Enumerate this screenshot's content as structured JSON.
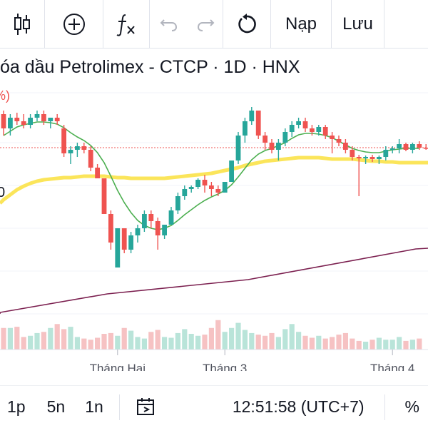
{
  "toolbar": {
    "items": [
      {
        "name": "candles-icon"
      },
      {
        "name": "add-indicator-icon"
      },
      {
        "name": "fx-icon"
      },
      {
        "name": "undo-icon"
      },
      {
        "name": "redo-icon"
      },
      {
        "name": "reload-icon"
      }
    ],
    "load_label": "Nạp",
    "save_label": "Lưu"
  },
  "chart": {
    "title": "óa dầu Petrolimex - CTCP · 1D · HNX",
    "left_cut_label": "%)",
    "left_price_label": "0"
  },
  "chart_data": {
    "type": "candlestick",
    "x_tick_labels": [
      "Tháng Hai",
      "Tháng 3",
      "Tháng 4"
    ],
    "colors": {
      "up": "#26a69a",
      "down": "#ef5350",
      "ma_fast": "#4caf50",
      "ma_mid": "#fbe55a",
      "ma_slow": "#7b1f4f",
      "vol_up": "#b9e4d9",
      "vol_down": "#f6c2c3"
    },
    "candles": [
      {
        "o": 62,
        "h": 62.5,
        "l": 59,
        "c": 60
      },
      {
        "o": 60,
        "h": 62,
        "l": 59,
        "c": 61.5
      },
      {
        "o": 61.5,
        "h": 62.2,
        "l": 60.5,
        "c": 61
      },
      {
        "o": 61,
        "h": 62,
        "l": 60,
        "c": 60.5
      },
      {
        "o": 60.5,
        "h": 62,
        "l": 60,
        "c": 61.5
      },
      {
        "o": 61.5,
        "h": 62.5,
        "l": 61,
        "c": 62
      },
      {
        "o": 62,
        "h": 62.5,
        "l": 60.5,
        "c": 61
      },
      {
        "o": 61,
        "h": 61.5,
        "l": 60,
        "c": 61.5
      },
      {
        "o": 61.5,
        "h": 62,
        "l": 60.5,
        "c": 61
      },
      {
        "o": 60,
        "h": 60.5,
        "l": 56,
        "c": 56.5
      },
      {
        "o": 56.5,
        "h": 57.5,
        "l": 55,
        "c": 57
      },
      {
        "o": 57,
        "h": 58,
        "l": 56,
        "c": 57.5
      },
      {
        "o": 57.5,
        "h": 58,
        "l": 56.5,
        "c": 57
      },
      {
        "o": 57,
        "h": 57.5,
        "l": 54,
        "c": 54.5
      },
      {
        "o": 54.5,
        "h": 55,
        "l": 53,
        "c": 53
      },
      {
        "o": 53,
        "h": 53,
        "l": 48,
        "c": 48
      },
      {
        "o": 48,
        "h": 48.5,
        "l": 43,
        "c": 44
      },
      {
        "o": 40.5,
        "h": 46,
        "l": 40.5,
        "c": 46
      },
      {
        "o": 46,
        "h": 46,
        "l": 42.5,
        "c": 43
      },
      {
        "o": 43,
        "h": 45.5,
        "l": 42.5,
        "c": 45
      },
      {
        "o": 45,
        "h": 46.5,
        "l": 44,
        "c": 46
      },
      {
        "o": 46,
        "h": 48.5,
        "l": 45.5,
        "c": 48
      },
      {
        "o": 48,
        "h": 48.5,
        "l": 46,
        "c": 47
      },
      {
        "o": 47,
        "h": 47.5,
        "l": 43,
        "c": 45
      },
      {
        "o": 45,
        "h": 46.5,
        "l": 44.5,
        "c": 46.5
      },
      {
        "o": 46.5,
        "h": 49,
        "l": 46.5,
        "c": 48.5
      },
      {
        "o": 48.5,
        "h": 51,
        "l": 48,
        "c": 50.5
      },
      {
        "o": 50.5,
        "h": 52,
        "l": 50,
        "c": 51.5
      },
      {
        "o": 51.5,
        "h": 52,
        "l": 51,
        "c": 51.8
      },
      {
        "o": 51.8,
        "h": 53,
        "l": 51.5,
        "c": 52.8
      },
      {
        "o": 52.8,
        "h": 53.5,
        "l": 51,
        "c": 52
      },
      {
        "o": 52,
        "h": 52.5,
        "l": 50.5,
        "c": 51.5
      },
      {
        "o": 51.5,
        "h": 52,
        "l": 50.5,
        "c": 51
      },
      {
        "o": 51,
        "h": 52.5,
        "l": 51,
        "c": 52.5
      },
      {
        "o": 52.5,
        "h": 55.5,
        "l": 52.5,
        "c": 55.5
      },
      {
        "o": 55.5,
        "h": 59.5,
        "l": 55,
        "c": 59
      },
      {
        "o": 59,
        "h": 61.5,
        "l": 58,
        "c": 61
      },
      {
        "o": 61,
        "h": 63,
        "l": 60.5,
        "c": 62.5
      },
      {
        "o": 62.5,
        "h": 62.5,
        "l": 58.5,
        "c": 59
      },
      {
        "o": 59,
        "h": 59.5,
        "l": 57,
        "c": 58
      },
      {
        "o": 58,
        "h": 58.5,
        "l": 56.5,
        "c": 57
      },
      {
        "o": 57,
        "h": 58.5,
        "l": 55.5,
        "c": 58
      },
      {
        "o": 58,
        "h": 60,
        "l": 57.5,
        "c": 59.5
      },
      {
        "o": 59.5,
        "h": 61,
        "l": 58.8,
        "c": 60.5
      },
      {
        "o": 60.5,
        "h": 61.5,
        "l": 60,
        "c": 61
      },
      {
        "o": 61,
        "h": 61.5,
        "l": 59.5,
        "c": 60
      },
      {
        "o": 60,
        "h": 60.5,
        "l": 59,
        "c": 59.5
      },
      {
        "o": 59.5,
        "h": 60.5,
        "l": 59,
        "c": 60.2
      },
      {
        "o": 60.2,
        "h": 60.5,
        "l": 58.5,
        "c": 59
      },
      {
        "o": 59,
        "h": 59.5,
        "l": 56.5,
        "c": 58.5
      },
      {
        "o": 58.5,
        "h": 59,
        "l": 57.5,
        "c": 58
      },
      {
        "o": 58,
        "h": 58.5,
        "l": 56.5,
        "c": 57
      },
      {
        "o": 57,
        "h": 57.5,
        "l": 55.5,
        "c": 56
      },
      {
        "o": 56,
        "h": 56.3,
        "l": 50.5,
        "c": 55.8
      },
      {
        "o": 55.8,
        "h": 56.2,
        "l": 55,
        "c": 56
      },
      {
        "o": 56,
        "h": 56.3,
        "l": 55.3,
        "c": 55.7
      },
      {
        "o": 55.7,
        "h": 56.2,
        "l": 55,
        "c": 56
      },
      {
        "o": 56,
        "h": 57.5,
        "l": 55.5,
        "c": 57
      },
      {
        "o": 57,
        "h": 57.5,
        "l": 56.5,
        "c": 57.2
      },
      {
        "o": 57.2,
        "h": 58.5,
        "l": 56.5,
        "c": 57.8
      },
      {
        "o": 57.8,
        "h": 58,
        "l": 56.8,
        "c": 57
      },
      {
        "o": 57,
        "h": 58,
        "l": 56.5,
        "c": 57.8
      },
      {
        "o": 57.8,
        "h": 58.2,
        "l": 57,
        "c": 57.3
      },
      {
        "o": 57.3,
        "h": 57.8,
        "l": 57,
        "c": 57.2
      }
    ],
    "ma_fast": [
      59,
      59.6,
      60.2,
      60.5,
      60.7,
      60.9,
      60.9,
      60.8,
      60.6,
      60.1,
      59.4,
      58.8,
      58.3,
      57.6,
      56.6,
      55.2,
      53.3,
      51.3,
      49.6,
      48.2,
      47.1,
      46.4,
      46,
      45.8,
      46,
      46.4,
      47.1,
      47.9,
      48.6,
      49.3,
      49.9,
      50.4,
      50.8,
      51.3,
      52.1,
      53.2,
      54.4,
      55.6,
      56.4,
      56.9,
      57.2,
      57.6,
      58,
      58.6,
      59.1,
      59.3,
      59.3,
      59.2,
      59,
      58.7,
      58.2,
      57.7,
      57.2,
      56.9,
      56.7,
      56.6,
      56.6,
      56.8,
      57,
      57.1,
      57.2,
      57.2,
      57.2
    ],
    "ma_mid": [
      50,
      50.7,
      51.4,
      51.9,
      52.3,
      52.6,
      52.8,
      52.9,
      53,
      53.1,
      53.1,
      53.2,
      53.3,
      53.3,
      53.3,
      53.3,
      53.2,
      53.1,
      53.1,
      53,
      53,
      53,
      53,
      53,
      53,
      53.1,
      53.2,
      53.3,
      53.4,
      53.5,
      53.6,
      53.7,
      53.9,
      54.1,
      54.3,
      54.5,
      54.8,
      55,
      55.2,
      55.4,
      55.5,
      55.6,
      55.7,
      55.8,
      55.9,
      55.9,
      55.9,
      55.9,
      55.8,
      55.7,
      55.7,
      55.7,
      55.7,
      55.6,
      55.5,
      55.4,
      55.4,
      55.3,
      55.3,
      55.2,
      55.2,
      55.2,
      55.2
    ],
    "ma_slow": [
      {
        "i": 0,
        "v": 34.2
      },
      {
        "i": 16,
        "v": 36.8
      },
      {
        "i": 37,
        "v": 38.8
      },
      {
        "i": 62,
        "v": 43.1
      }
    ],
    "volumes": [
      0.55,
      0.55,
      0.58,
      0.32,
      0.35,
      0.42,
      0.45,
      0.55,
      0.65,
      0.52,
      0.58,
      0.32,
      0.28,
      0.25,
      0.3,
      0.4,
      0.42,
      0.35,
      0.55,
      0.48,
      0.32,
      0.28,
      0.45,
      0.5,
      0.32,
      0.3,
      0.42,
      0.52,
      0.4,
      0.35,
      0.38,
      0.55,
      0.75,
      0.45,
      0.55,
      0.68,
      0.5,
      0.42,
      0.38,
      0.35,
      0.42,
      0.32,
      0.52,
      0.65,
      0.45,
      0.35,
      0.3,
      0.35,
      0.28,
      0.32,
      0.38,
      0.42,
      0.28,
      0.22,
      0.2,
      0.25,
      0.3,
      0.25,
      0.25,
      0.32,
      0.22,
      0.25,
      0.28
    ],
    "ref_price": 57.3
  },
  "bottom_bar": {
    "periods": [
      "1p",
      "5n",
      "1n"
    ],
    "time": "12:51:58 (UTC+7)",
    "percent_label": "%"
  }
}
